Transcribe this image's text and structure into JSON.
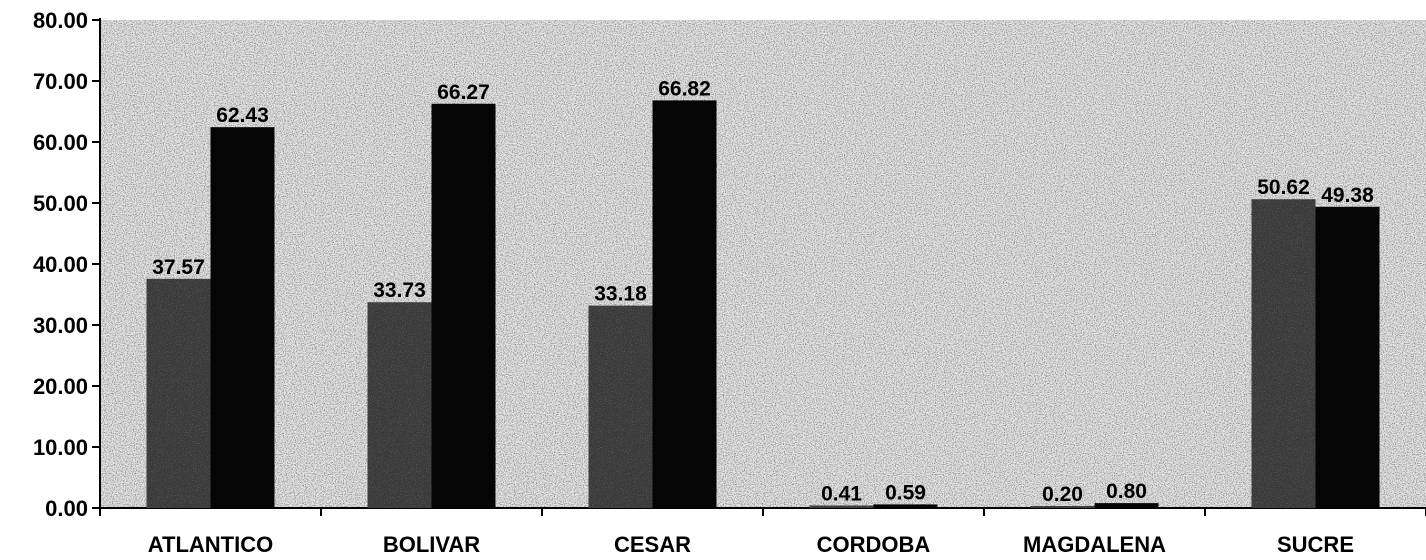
{
  "chart_data": {
    "type": "bar",
    "categories": [
      "ATLANTICO",
      "BOLIVAR",
      "CESAR",
      "CORDOBA",
      "MAGDALENA",
      "SUCRE"
    ],
    "series": [
      {
        "values": [
          37.57,
          33.73,
          33.18,
          0.41,
          0.2,
          50.62
        ],
        "labels": [
          "37.57",
          "33.73",
          "33.18",
          "0.41",
          "0.20",
          "50.62"
        ],
        "color": "#3a3a3a"
      },
      {
        "values": [
          62.43,
          66.27,
          66.82,
          0.59,
          0.8,
          49.38
        ],
        "labels": [
          "62.43",
          "66.27",
          "66.82",
          "0.59",
          "0.80",
          "49.38"
        ],
        "color": "#050505"
      }
    ],
    "ylim": [
      0,
      80
    ],
    "yticks": [
      "0.00",
      "10.00",
      "20.00",
      "30.00",
      "40.00",
      "50.00",
      "60.00",
      "70.00",
      "80.00"
    ],
    "ytick_values": [
      0,
      10,
      20,
      30,
      40,
      50,
      60,
      70,
      80
    ],
    "title": "",
    "xlabel": "",
    "ylabel": "",
    "grid": false,
    "legend": "none",
    "plot_background": "#d9d9d9"
  }
}
